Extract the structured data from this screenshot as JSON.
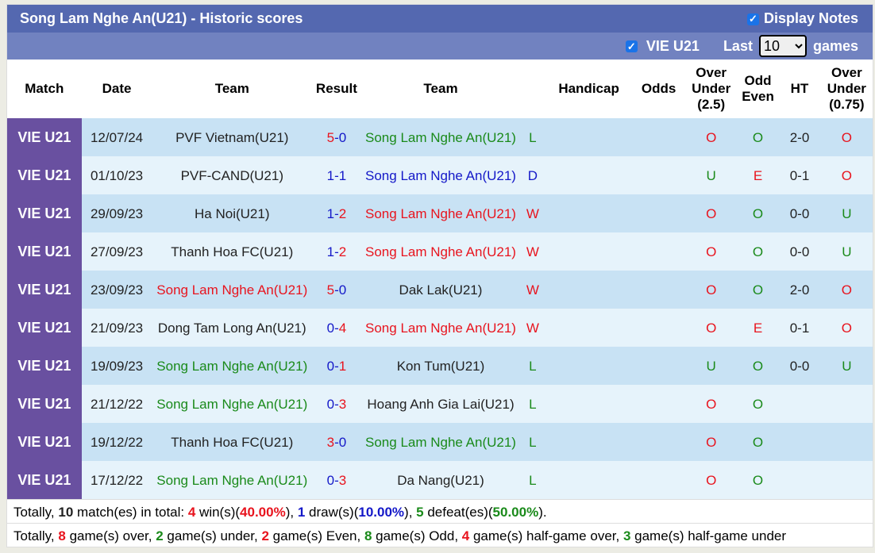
{
  "header": {
    "title": "Song Lam Nghe An(U21) - Historic scores",
    "display_notes": "Display Notes",
    "filter_league": "VIE U21",
    "last_label": "Last",
    "games_select": "10",
    "games_label": "games"
  },
  "columns": [
    "Match",
    "Date",
    "Team",
    "Result",
    "Team",
    "",
    "Handicap",
    "Odds",
    "Over Under (2.5)",
    "Odd Even",
    "HT",
    "Over Under (0.75)"
  ],
  "colors": {
    "win": "#e8141e",
    "draw": "#1418c8",
    "loss": "#1a8a1a",
    "match_bg": "#6950a0",
    "title_bg": "#5468b0"
  },
  "rows": [
    {
      "match": "VIE U21",
      "date": "12/07/24",
      "home": "PVF Vietnam(U21)",
      "hs": "5",
      "as": "0",
      "away": "Song Lam Nghe An(U21)",
      "res": "L",
      "hcp": "",
      "odds": "",
      "ou": "O",
      "oe": "O",
      "ht": "2-0",
      "ou2": "O",
      "sl": "away"
    },
    {
      "match": "VIE U21",
      "date": "01/10/23",
      "home": "PVF-CAND(U21)",
      "hs": "1",
      "as": "1",
      "away": "Song Lam Nghe An(U21)",
      "res": "D",
      "hcp": "",
      "odds": "",
      "ou": "U",
      "oe": "E",
      "ht": "0-1",
      "ou2": "O",
      "sl": "away"
    },
    {
      "match": "VIE U21",
      "date": "29/09/23",
      "home": "Ha Noi(U21)",
      "hs": "1",
      "as": "2",
      "away": "Song Lam Nghe An(U21)",
      "res": "W",
      "hcp": "",
      "odds": "",
      "ou": "O",
      "oe": "O",
      "ht": "0-0",
      "ou2": "U",
      "sl": "away"
    },
    {
      "match": "VIE U21",
      "date": "27/09/23",
      "home": "Thanh Hoa FC(U21)",
      "hs": "1",
      "as": "2",
      "away": "Song Lam Nghe An(U21)",
      "res": "W",
      "hcp": "",
      "odds": "",
      "ou": "O",
      "oe": "O",
      "ht": "0-0",
      "ou2": "U",
      "sl": "away"
    },
    {
      "match": "VIE U21",
      "date": "23/09/23",
      "home": "Song Lam Nghe An(U21)",
      "hs": "5",
      "as": "0",
      "away": "Dak Lak(U21)",
      "res": "W",
      "hcp": "",
      "odds": "",
      "ou": "O",
      "oe": "O",
      "ht": "2-0",
      "ou2": "O",
      "sl": "home"
    },
    {
      "match": "VIE U21",
      "date": "21/09/23",
      "home": "Dong Tam Long An(U21)",
      "hs": "0",
      "as": "4",
      "away": "Song Lam Nghe An(U21)",
      "res": "W",
      "hcp": "",
      "odds": "",
      "ou": "O",
      "oe": "E",
      "ht": "0-1",
      "ou2": "O",
      "sl": "away"
    },
    {
      "match": "VIE U21",
      "date": "19/09/23",
      "home": "Song Lam Nghe An(U21)",
      "hs": "0",
      "as": "1",
      "away": "Kon Tum(U21)",
      "res": "L",
      "hcp": "",
      "odds": "",
      "ou": "U",
      "oe": "O",
      "ht": "0-0",
      "ou2": "U",
      "sl": "home"
    },
    {
      "match": "VIE U21",
      "date": "21/12/22",
      "home": "Song Lam Nghe An(U21)",
      "hs": "0",
      "as": "3",
      "away": "Hoang Anh Gia Lai(U21)",
      "res": "L",
      "hcp": "",
      "odds": "",
      "ou": "O",
      "oe": "O",
      "ht": "",
      "ou2": "",
      "sl": "home"
    },
    {
      "match": "VIE U21",
      "date": "19/12/22",
      "home": "Thanh Hoa FC(U21)",
      "hs": "3",
      "as": "0",
      "away": "Song Lam Nghe An(U21)",
      "res": "L",
      "hcp": "",
      "odds": "",
      "ou": "O",
      "oe": "O",
      "ht": "",
      "ou2": "",
      "sl": "away"
    },
    {
      "match": "VIE U21",
      "date": "17/12/22",
      "home": "Song Lam Nghe An(U21)",
      "hs": "0",
      "as": "3",
      "away": "Da Nang(U21)",
      "res": "L",
      "hcp": "",
      "odds": "",
      "ou": "O",
      "oe": "O",
      "ht": "",
      "ou2": "",
      "sl": "home"
    }
  ],
  "summary1": {
    "a": "Totally, ",
    "total": "10",
    "b": " match(es) in total: ",
    "wins": "4",
    "c": " win(s)(",
    "wp": "40.00%",
    "d": "), ",
    "draws": "1",
    "e": " draw(s)(",
    "dp": "10.00%",
    "f": "), ",
    "losses": "5",
    "g": " defeat(es)(",
    "lp": "50.00%",
    "h": ")."
  },
  "summary2": {
    "a": "Totally, ",
    "over": "8",
    "b": " game(s) over, ",
    "under": "2",
    "c": " game(s) under, ",
    "even": "2",
    "d": " game(s) Even, ",
    "odd": "8",
    "e": " game(s) Odd, ",
    "hgo": "4",
    "f": " game(s) half-game over, ",
    "hgu": "3",
    "g": " game(s) half-game under"
  }
}
